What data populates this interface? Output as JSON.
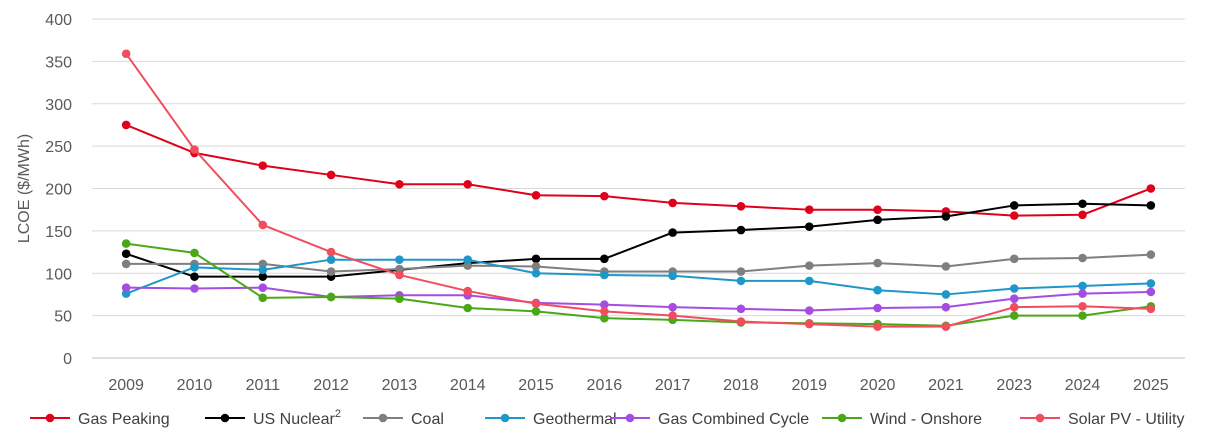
{
  "chart_data": {
    "type": "line",
    "title": "",
    "xlabel": "",
    "ylabel": "LCOE ($/MWh)",
    "ylim": [
      0,
      400
    ],
    "yticks": [
      0,
      50,
      100,
      150,
      200,
      250,
      300,
      350,
      400
    ],
    "grid": true,
    "legend_position": "bottom",
    "categories": [
      "2009",
      "2010",
      "2011",
      "2012",
      "2013",
      "2014",
      "2015",
      "2016",
      "2017",
      "2018",
      "2019",
      "2020",
      "2021",
      "2023",
      "2024",
      "2025"
    ],
    "series": [
      {
        "name": "Gas Peaking",
        "legend_text": "Gas Peaking",
        "color": "#e0001b",
        "values": [
          275,
          242,
          227,
          216,
          205,
          205,
          192,
          191,
          183,
          179,
          175,
          175,
          173,
          168,
          169,
          200
        ]
      },
      {
        "name": "US Nuclear",
        "legend_text": "US Nuclear",
        "legend_sup": "2",
        "color": "#000000",
        "values": [
          123,
          96,
          96,
          96,
          104,
          112,
          117,
          117,
          148,
          151,
          155,
          163,
          167,
          180,
          182,
          180
        ]
      },
      {
        "name": "Coal",
        "legend_text": "Coal",
        "color": "#7f7f7f",
        "values": [
          111,
          111,
          111,
          102,
          105,
          109,
          108,
          102,
          102,
          102,
          109,
          112,
          108,
          117,
          118,
          122
        ]
      },
      {
        "name": "Geothermal",
        "legend_text": "Geothermal",
        "color": "#1f97c8",
        "values": [
          76,
          107,
          104,
          116,
          116,
          116,
          100,
          98,
          97,
          91,
          91,
          80,
          75,
          82,
          85,
          88
        ]
      },
      {
        "name": "Gas Combined Cycle",
        "legend_text": "Gas Combined Cycle",
        "color": "#a54de0",
        "values": [
          83,
          82,
          83,
          72,
          74,
          74,
          65,
          63,
          60,
          58,
          56,
          59,
          60,
          70,
          76,
          78
        ]
      },
      {
        "name": "Wind - Onshore",
        "legend_text": "Wind - Onshore",
        "color": "#4aa818",
        "values": [
          135,
          124,
          71,
          72,
          70,
          59,
          55,
          47,
          45,
          42,
          41,
          40,
          38,
          50,
          50,
          61
        ]
      },
      {
        "name": "Solar PV - Utility",
        "legend_text": "Solar PV - Utility",
        "color": "#f04e5e",
        "values": [
          359,
          246,
          157,
          125,
          98,
          79,
          64,
          55,
          50,
          43,
          40,
          37,
          37,
          60,
          61,
          58
        ]
      }
    ]
  }
}
